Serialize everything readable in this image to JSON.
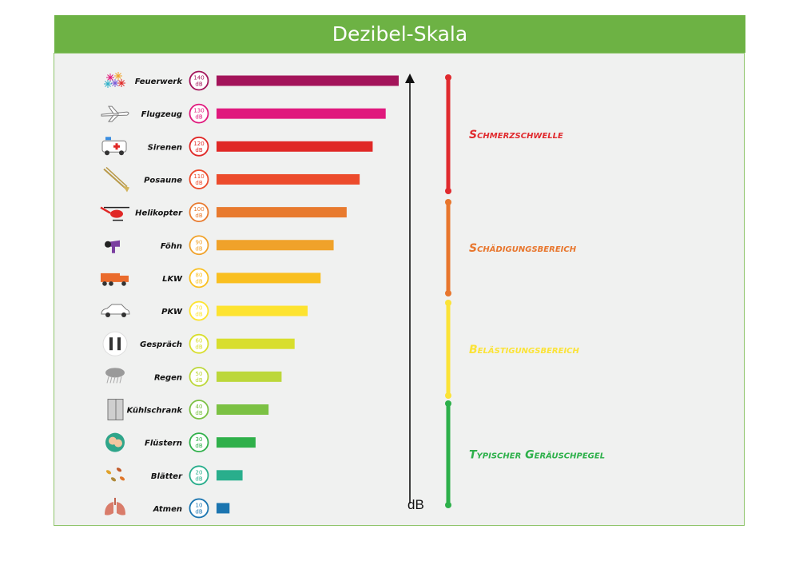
{
  "title": "Dezibel-Skala",
  "chart_data": {
    "type": "bar",
    "orientation": "horizontal",
    "unit": "dB",
    "axis_label": "dB",
    "categories": [
      "Feuerwerk",
      "Flugzeug",
      "Sirenen",
      "Posaune",
      "Helikopter",
      "Föhn",
      "LKW",
      "PKW",
      "Gespräch",
      "Regen",
      "Kühlschrank",
      "Flüstern",
      "Blätter",
      "Atmen"
    ],
    "values": [
      140,
      130,
      120,
      110,
      100,
      90,
      80,
      70,
      60,
      50,
      40,
      30,
      20,
      10
    ],
    "badge_labels": [
      "140\ndB",
      "130\ndB",
      "120\ndB",
      "110\ndB",
      "100\ndB",
      "90\ndB",
      "80\ndB",
      "70\ndB",
      "60\ndB",
      "50\ndB",
      "40\ndB",
      "30\ndB",
      "20\ndB",
      "10\ndB"
    ],
    "bar_colors": [
      "#a3145a",
      "#e0197d",
      "#e02826",
      "#ec4b2c",
      "#e87a2e",
      "#f0a22a",
      "#f9bf1f",
      "#fde330",
      "#d8de2d",
      "#bcd73a",
      "#7bc143",
      "#2fb04a",
      "#29ae8c",
      "#1b75b0"
    ],
    "icons": [
      "fireworks-icon",
      "airplane-icon",
      "ambulance-icon",
      "trombone-icon",
      "helicopter-icon",
      "hairdryer-icon",
      "truck-icon",
      "car-icon",
      "people-talking-icon",
      "rain-cloud-icon",
      "fridge-icon",
      "whisper-icon",
      "leaves-icon",
      "lungs-icon"
    ],
    "zones": [
      {
        "label": "Schmerzschwelle",
        "color": "#e02a2e"
      },
      {
        "label": "Schädigungsbereich",
        "color": "#e8762d"
      },
      {
        "label": "Belästigungsbereich",
        "color": "#fbe337"
      },
      {
        "label": "Typischer Geräuschpegel",
        "color": "#2db04a"
      }
    ]
  }
}
